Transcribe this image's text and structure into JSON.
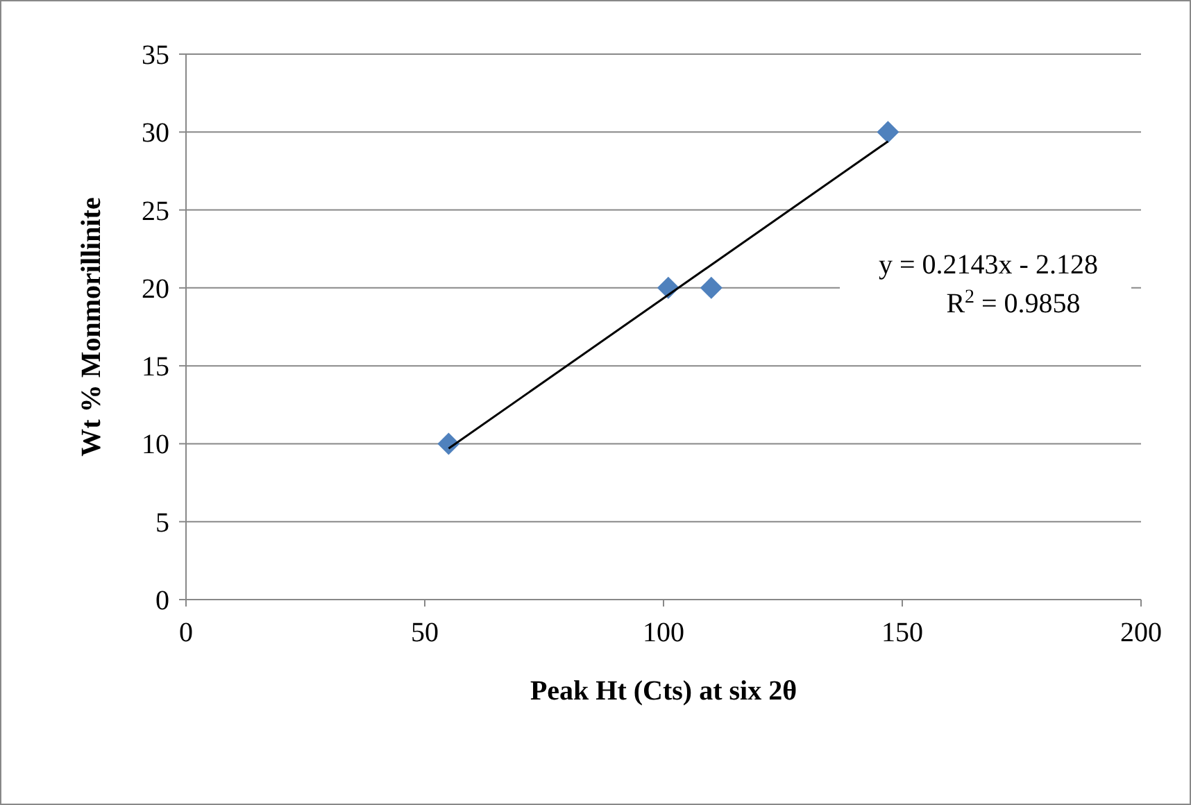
{
  "chart_data": {
    "type": "scatter",
    "xlabel": "Peak Ht (Cts) at six 2θ",
    "ylabel": "Wt % Monmorillinite",
    "xlim": [
      0,
      200
    ],
    "xticks": [
      0,
      50,
      100,
      150,
      200
    ],
    "ylim": [
      0,
      35
    ],
    "yticks": [
      0,
      5,
      10,
      15,
      20,
      25,
      30,
      35
    ],
    "grid": "y",
    "series": [
      {
        "type": "scatter",
        "marker": "diamond",
        "color": "#4f81bd",
        "x": [
          55,
          101,
          110,
          147
        ],
        "values": [
          10,
          20,
          20,
          30
        ]
      },
      {
        "type": "line",
        "marker": "none",
        "color": "#000000",
        "x": [
          55,
          147
        ],
        "values": [
          9.7,
          29.4
        ]
      }
    ],
    "annotations": [
      "y = 0.2143x - 2.128",
      "R$^{2}$ = 0.9858"
    ]
  }
}
